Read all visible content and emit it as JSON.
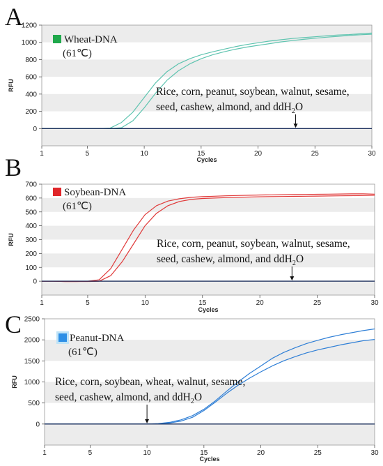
{
  "chart_data": [
    {
      "type": "line",
      "panel_label": "A",
      "legend": {
        "name": "Wheat-DNA",
        "condition": "(61℃)",
        "color": "#1fa84b"
      },
      "xlabel": "Cycles",
      "ylabel": "RFU",
      "xlim": [
        1,
        30
      ],
      "ylim": [
        -200,
        1200
      ],
      "xticks": [
        1,
        5,
        10,
        15,
        20,
        25,
        30
      ],
      "yticks": [
        0,
        200,
        400,
        600,
        800,
        1000,
        1200
      ],
      "line_color": "#5fc4b0",
      "series": [
        {
          "x": [
            1,
            2,
            3,
            4,
            5,
            6,
            7,
            8,
            9,
            10,
            11,
            12,
            13,
            14,
            15,
            16,
            17,
            18,
            19,
            20,
            21,
            22,
            23,
            24,
            25,
            26,
            27,
            28,
            29,
            30
          ],
          "values": [
            0,
            0,
            0,
            0,
            0,
            0,
            5,
            70,
            190,
            360,
            530,
            660,
            750,
            810,
            855,
            890,
            920,
            950,
            975,
            995,
            1015,
            1030,
            1045,
            1055,
            1065,
            1075,
            1085,
            1090,
            1100,
            1108
          ]
        },
        {
          "x": [
            1,
            2,
            3,
            4,
            5,
            6,
            7,
            8,
            9,
            10,
            11,
            12,
            13,
            14,
            15,
            16,
            17,
            18,
            19,
            20,
            21,
            22,
            23,
            24,
            25,
            26,
            27,
            28,
            29,
            30
          ],
          "values": [
            0,
            0,
            0,
            0,
            0,
            0,
            0,
            10,
            90,
            240,
            410,
            560,
            670,
            750,
            810,
            855,
            890,
            920,
            945,
            965,
            985,
            1005,
            1020,
            1035,
            1048,
            1060,
            1070,
            1080,
            1088,
            1095
          ]
        },
        {
          "x": [
            1,
            30
          ],
          "values": [
            0,
            0
          ],
          "color": "#1b2f5c"
        }
      ],
      "annotation": {
        "lines": [
          "Rice, corn, peanut, soybean, walnut, sesame,",
          "seed, cashew, almond, and ddH",
          "O"
        ],
        "subscript": "2",
        "arrow_x": 23.3
      }
    },
    {
      "type": "line",
      "panel_label": "B",
      "legend": {
        "name": "Soybean-DNA",
        "condition": "(61℃)",
        "color": "#e0262a"
      },
      "xlabel": "Cycles",
      "ylabel": "RFU",
      "xlim": [
        1,
        30
      ],
      "ylim": [
        -100,
        700
      ],
      "xticks": [
        1,
        5,
        10,
        15,
        20,
        25,
        30
      ],
      "yticks": [
        0,
        100,
        200,
        300,
        400,
        500,
        600,
        700
      ],
      "line_color": "#e03a3a",
      "series": [
        {
          "x": [
            1,
            2,
            3,
            4,
            5,
            6,
            7,
            8,
            9,
            10,
            11,
            12,
            13,
            14,
            15,
            16,
            17,
            18,
            19,
            20,
            21,
            22,
            23,
            24,
            25,
            26,
            27,
            28,
            29,
            30
          ],
          "values": [
            0,
            0,
            -2,
            -2,
            0,
            10,
            90,
            230,
            370,
            480,
            545,
            578,
            595,
            605,
            610,
            613,
            616,
            618,
            620,
            622,
            623,
            624,
            625,
            626,
            627,
            628,
            629,
            630,
            630,
            628
          ]
        },
        {
          "x": [
            1,
            2,
            3,
            4,
            5,
            6,
            7,
            8,
            9,
            10,
            11,
            12,
            13,
            14,
            15,
            16,
            17,
            18,
            19,
            20,
            21,
            22,
            23,
            24,
            25,
            26,
            27,
            28,
            29,
            30
          ],
          "values": [
            0,
            0,
            -2,
            -2,
            -2,
            0,
            40,
            140,
            270,
            400,
            490,
            545,
            575,
            590,
            597,
            600,
            603,
            605,
            607,
            609,
            610,
            611,
            612,
            613,
            614,
            615,
            616,
            617,
            618,
            620
          ]
        },
        {
          "x": [
            1,
            30
          ],
          "values": [
            0,
            0
          ],
          "color": "#1b2f5c"
        }
      ],
      "annotation": {
        "lines": [
          "Rice, corn, peanut, soybean, walnut, sesame,",
          "seed, cashew, almond, and ddH",
          "O"
        ],
        "subscript": "2",
        "arrow_x": 22.8
      }
    },
    {
      "type": "line",
      "panel_label": "C",
      "legend": {
        "name": "Peanut-DNA",
        "condition": "(61℃)",
        "color": "#2d8fe6"
      },
      "xlabel": "Cycles",
      "ylabel": "RFU",
      "xlim": [
        1,
        30
      ],
      "ylim": [
        -500,
        2500
      ],
      "xticks": [
        1,
        5,
        10,
        15,
        20,
        25,
        30
      ],
      "yticks": [
        0,
        500,
        1000,
        1500,
        2000,
        2500
      ],
      "line_color": "#2f7fd6",
      "series": [
        {
          "x": [
            1,
            2,
            3,
            4,
            5,
            6,
            7,
            8,
            9,
            10,
            11,
            12,
            13,
            14,
            15,
            16,
            17,
            18,
            19,
            20,
            21,
            22,
            23,
            24,
            25,
            26,
            27,
            28,
            29,
            30
          ],
          "values": [
            0,
            0,
            0,
            0,
            0,
            0,
            0,
            0,
            0,
            0,
            10,
            40,
            100,
            200,
            350,
            550,
            780,
            1000,
            1200,
            1380,
            1560,
            1700,
            1810,
            1910,
            1990,
            2060,
            2120,
            2170,
            2220,
            2260
          ]
        },
        {
          "x": [
            1,
            2,
            3,
            4,
            5,
            6,
            7,
            8,
            9,
            10,
            11,
            12,
            13,
            14,
            15,
            16,
            17,
            18,
            19,
            20,
            21,
            22,
            23,
            24,
            25,
            26,
            27,
            28,
            29,
            30
          ],
          "values": [
            0,
            0,
            0,
            0,
            0,
            0,
            0,
            0,
            0,
            0,
            5,
            25,
            70,
            160,
            320,
            520,
            730,
            920,
            1090,
            1240,
            1380,
            1500,
            1600,
            1690,
            1760,
            1820,
            1880,
            1930,
            1980,
            2010
          ]
        },
        {
          "x": [
            1,
            30
          ],
          "values": [
            0,
            0
          ],
          "color": "#1b2f5c"
        }
      ],
      "annotation": {
        "lines": [
          "Rice, corn, soybean, wheat, walnut, sesame,",
          "seed, cashew, almond,  and ddH",
          "O"
        ],
        "subscript": "2",
        "arrow_x": 10
      }
    }
  ]
}
